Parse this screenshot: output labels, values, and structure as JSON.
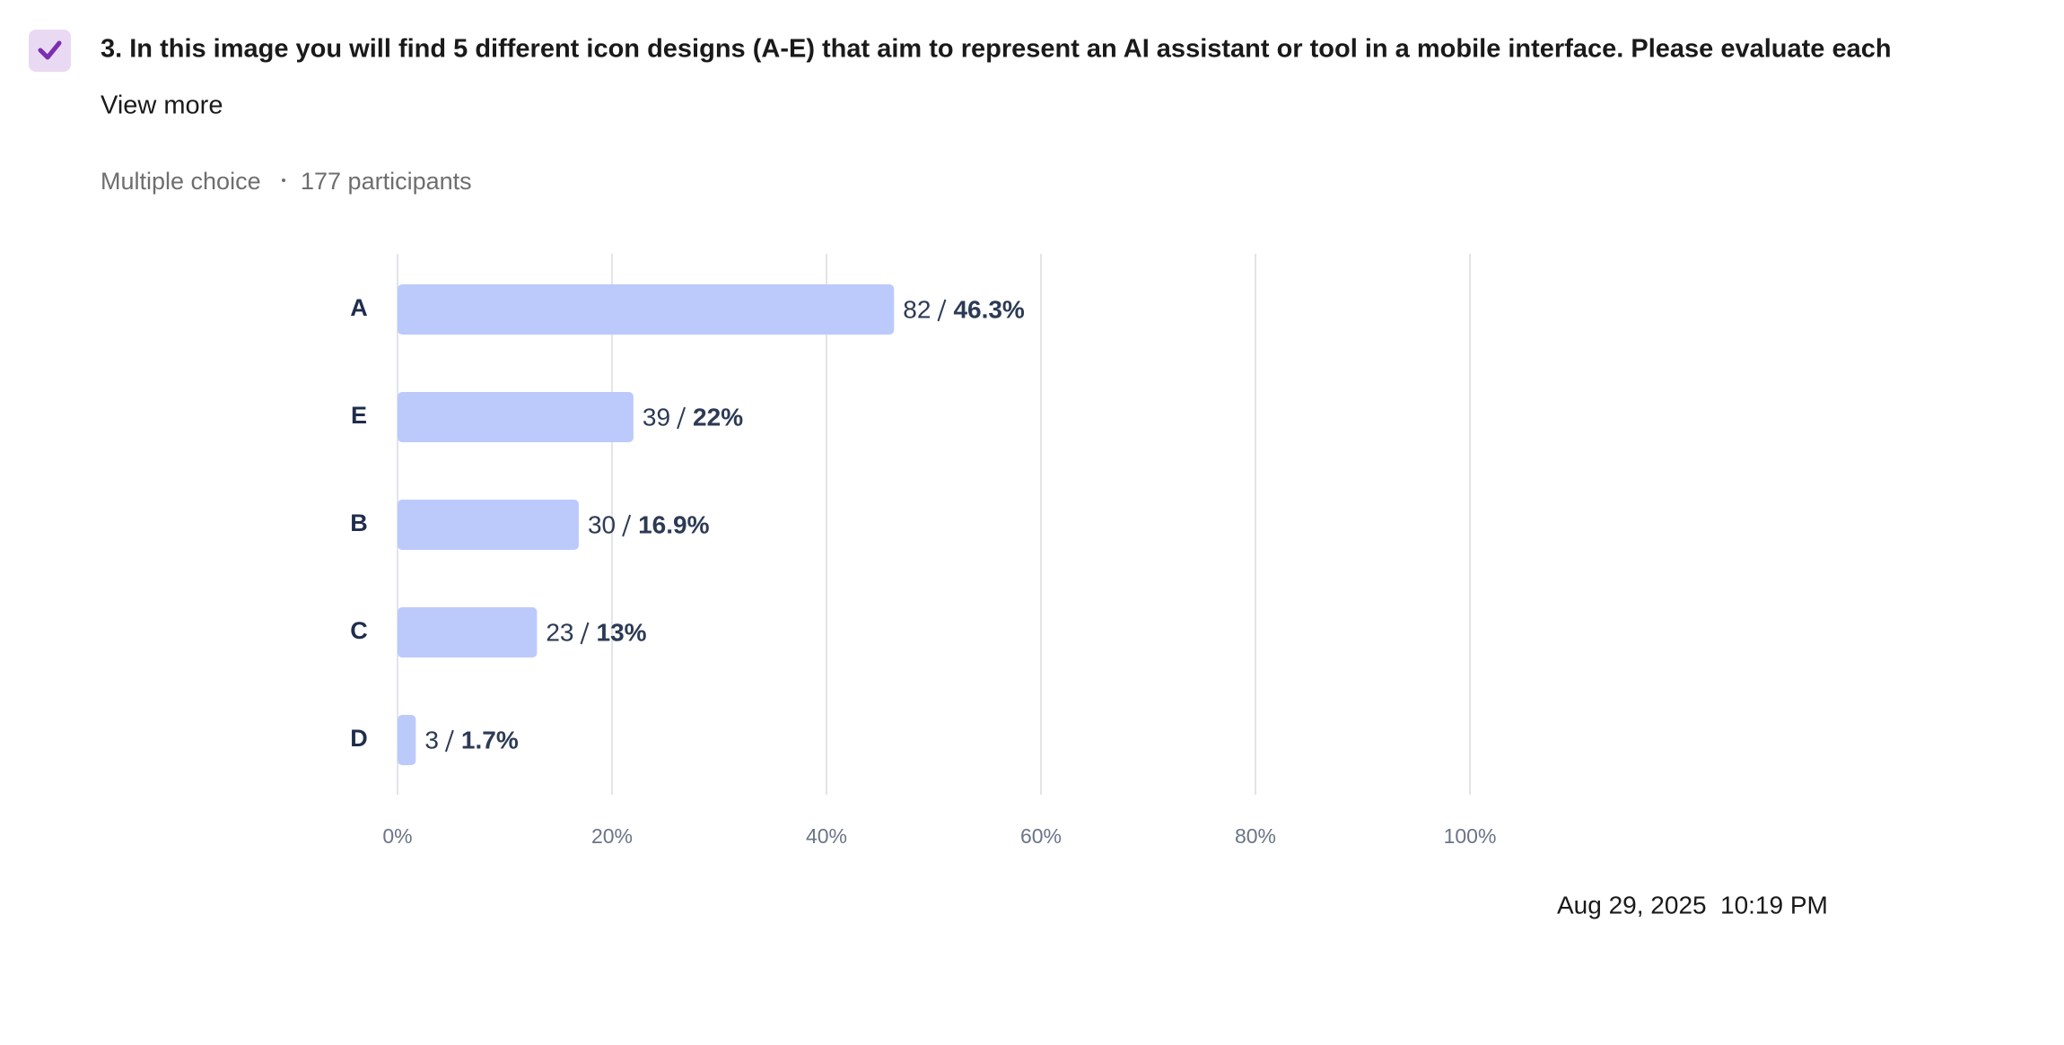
{
  "question": {
    "title": "3. In this image you will find 5 different icon designs (A-E) that aim to represent an AI assistant or tool in a mobile interface. Please evaluate each",
    "view_more": "View more",
    "kind": "Multiple choice",
    "participants": "177 participants"
  },
  "chart_data": {
    "type": "bar",
    "orientation": "horizontal",
    "categories": [
      "A",
      "E",
      "B",
      "C",
      "D"
    ],
    "values": [
      46.3,
      22,
      16.9,
      13,
      1.7
    ],
    "value_labels": [
      "46.3%",
      "22%",
      "16.9%",
      "13%",
      "1.7%"
    ],
    "counts": [
      82,
      39,
      30,
      23,
      3
    ],
    "color": "#bccafb",
    "xlim": [
      0,
      100
    ],
    "xticks": [
      {
        "value": 0,
        "label": "0%"
      },
      {
        "value": 20,
        "label": "20%"
      },
      {
        "value": 40,
        "label": "40%"
      },
      {
        "value": 60,
        "label": "60%"
      },
      {
        "value": 80,
        "label": "80%"
      },
      {
        "value": 100,
        "label": "100%"
      }
    ],
    "grid": true
  },
  "timestamp": {
    "date": "Aug 29, 2025",
    "time": "10:19 PM"
  }
}
